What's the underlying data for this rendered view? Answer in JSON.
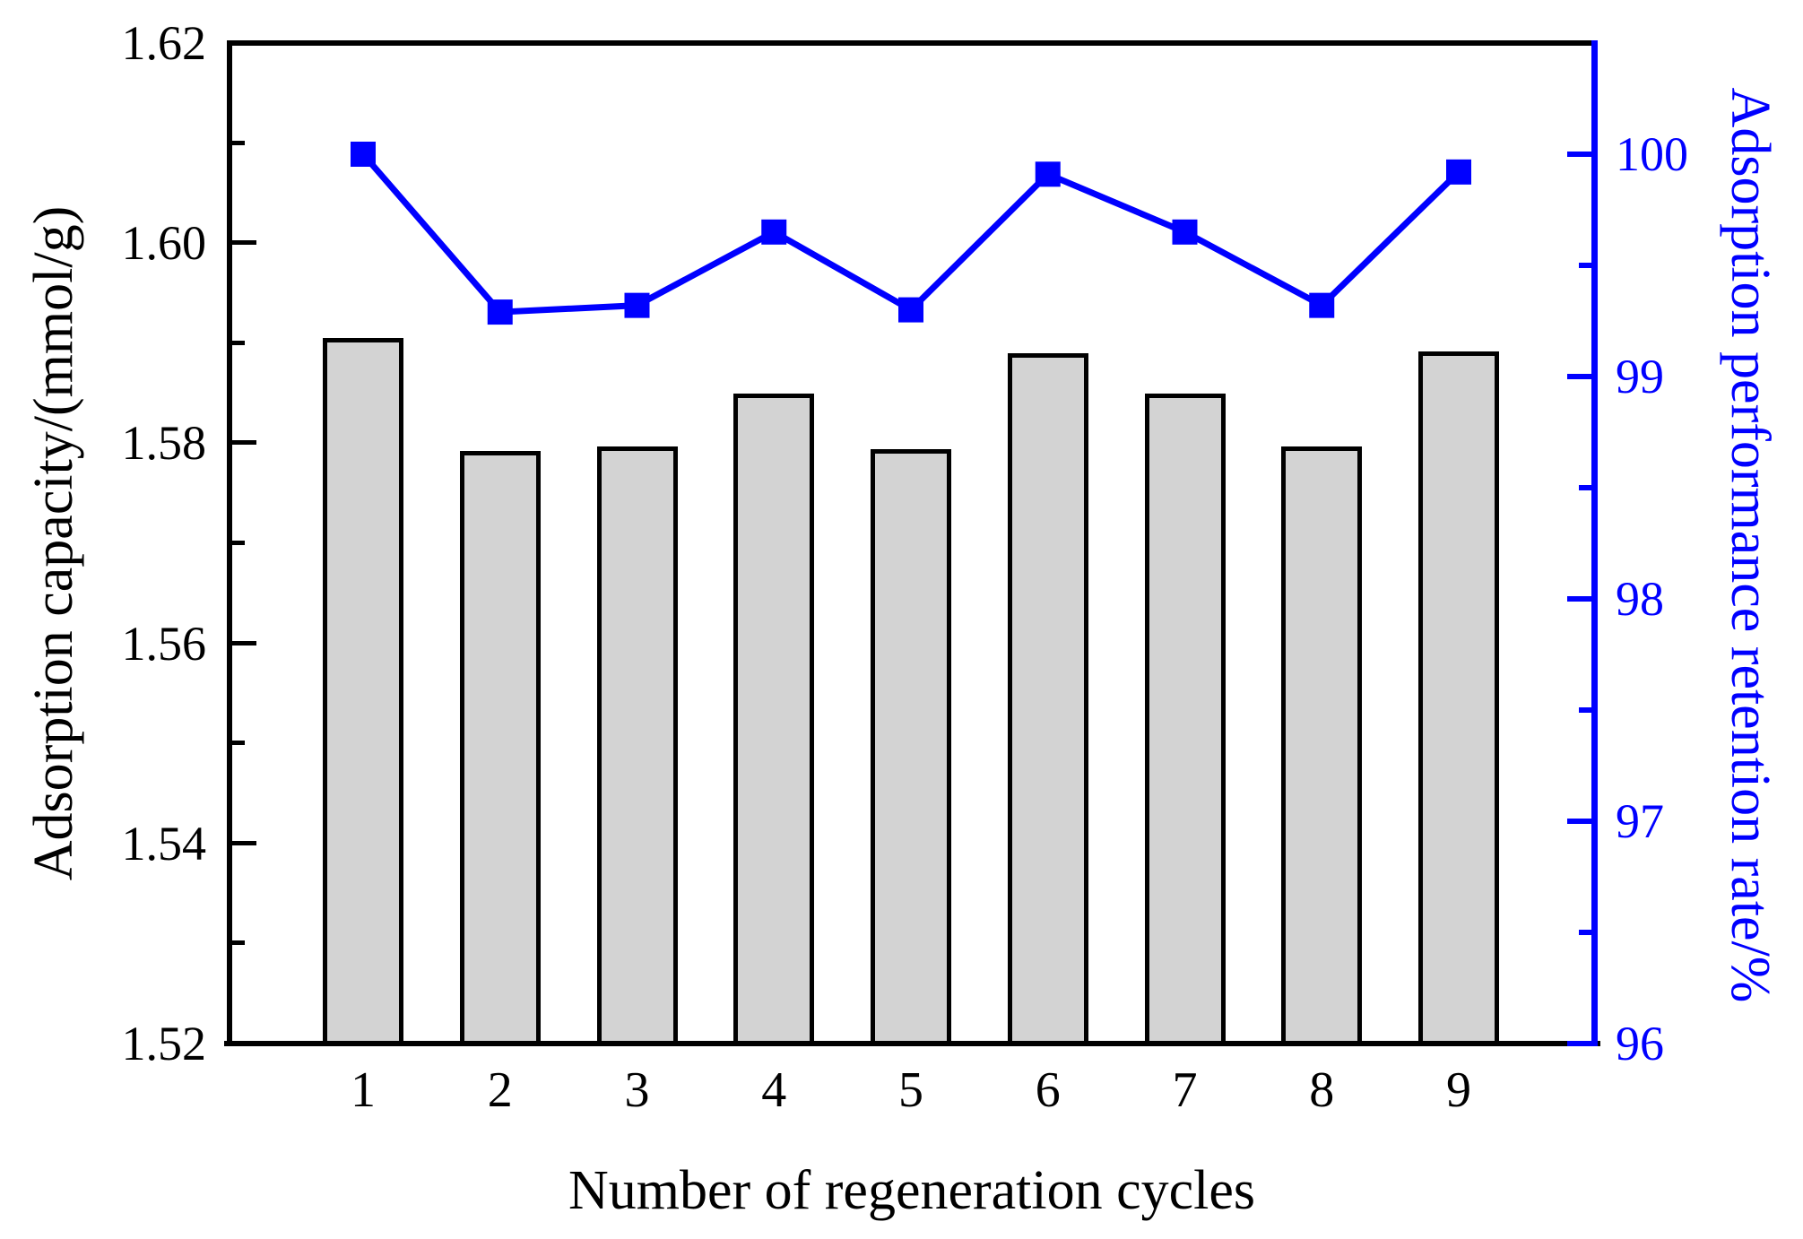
{
  "chart_data": {
    "type": "bar",
    "subtype": "dual-axis bar + line combo",
    "categories": [
      "1",
      "2",
      "3",
      "4",
      "5",
      "6",
      "7",
      "8",
      "9"
    ],
    "series": [
      {
        "name": "Adsorption capacity",
        "type": "bar",
        "axis": "left",
        "values": [
          1.5905,
          1.5792,
          1.5797,
          1.585,
          1.5794,
          1.589,
          1.585,
          1.5797,
          1.5892
        ],
        "fill_color": "#d3d3d3",
        "border_color": "#000000"
      },
      {
        "name": "Adsorption performance retention rate",
        "type": "line",
        "axis": "right",
        "values": [
          100.0,
          99.29,
          99.32,
          99.65,
          99.3,
          99.91,
          99.65,
          99.32,
          99.92
        ],
        "color": "#0000ff",
        "marker": "square"
      }
    ],
    "xlabel": "Number of regeneration cycles",
    "left_axis": {
      "label": "Adsorption capacity/(mmol/g)",
      "min": 1.52,
      "max": 1.62,
      "major_ticks": [
        1.62,
        1.6,
        1.58,
        1.56,
        1.54,
        1.52
      ],
      "major_tick_labels": [
        "1.62",
        "1.60",
        "1.58",
        "1.56",
        "1.54",
        "1.52"
      ],
      "minor_ticks": [
        1.61,
        1.59,
        1.57,
        1.55,
        1.53
      ],
      "color": "#000000"
    },
    "right_axis": {
      "label": "Adsorption performance retention rate/%",
      "min": 96,
      "max": 100.5,
      "major_ticks": [
        100,
        99,
        98,
        97,
        96
      ],
      "major_tick_labels": [
        "100",
        "99",
        "98",
        "97",
        "96"
      ],
      "minor_ticks": [
        99.5,
        98.5,
        97.5,
        96.5
      ],
      "color": "#0000ff"
    },
    "grid": false,
    "legend": "none",
    "background": "#ffffff"
  }
}
